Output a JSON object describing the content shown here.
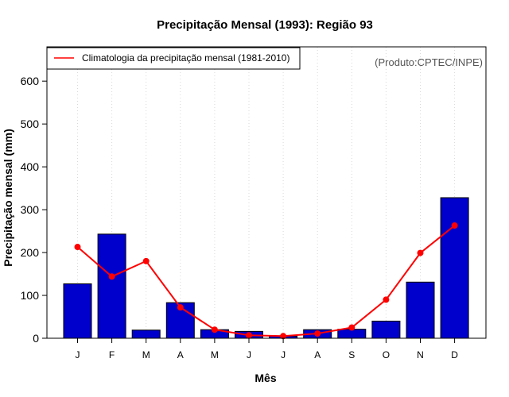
{
  "chart_data": {
    "type": "bar",
    "title": "Precipitação Mensal (1993): Região 93",
    "xlabel": "Mês",
    "ylabel": "Precipitação mensal (mm)",
    "credit": "(Produto:CPTEC/INPE)",
    "categories": [
      "J",
      "F",
      "M",
      "A",
      "M",
      "J",
      "J",
      "A",
      "S",
      "O",
      "N",
      "D"
    ],
    "ylim": [
      0,
      680
    ],
    "yticks": [
      0,
      100,
      200,
      300,
      400,
      500,
      600
    ],
    "grid": "vertical dotted",
    "legend_position": "top-left",
    "series": [
      {
        "name": "Precipitação mensal (1993)",
        "kind": "bar",
        "color": "#0000cc",
        "values": [
          127,
          243,
          19,
          83,
          20,
          16,
          5,
          20,
          21,
          40,
          131,
          328
        ]
      },
      {
        "name": "Climatologia da precipitação mensal (1981-2010)",
        "kind": "line",
        "color": "#ff0000",
        "values": [
          213,
          144,
          180,
          72,
          20,
          7,
          5,
          11,
          25,
          90,
          199,
          263
        ]
      }
    ]
  }
}
